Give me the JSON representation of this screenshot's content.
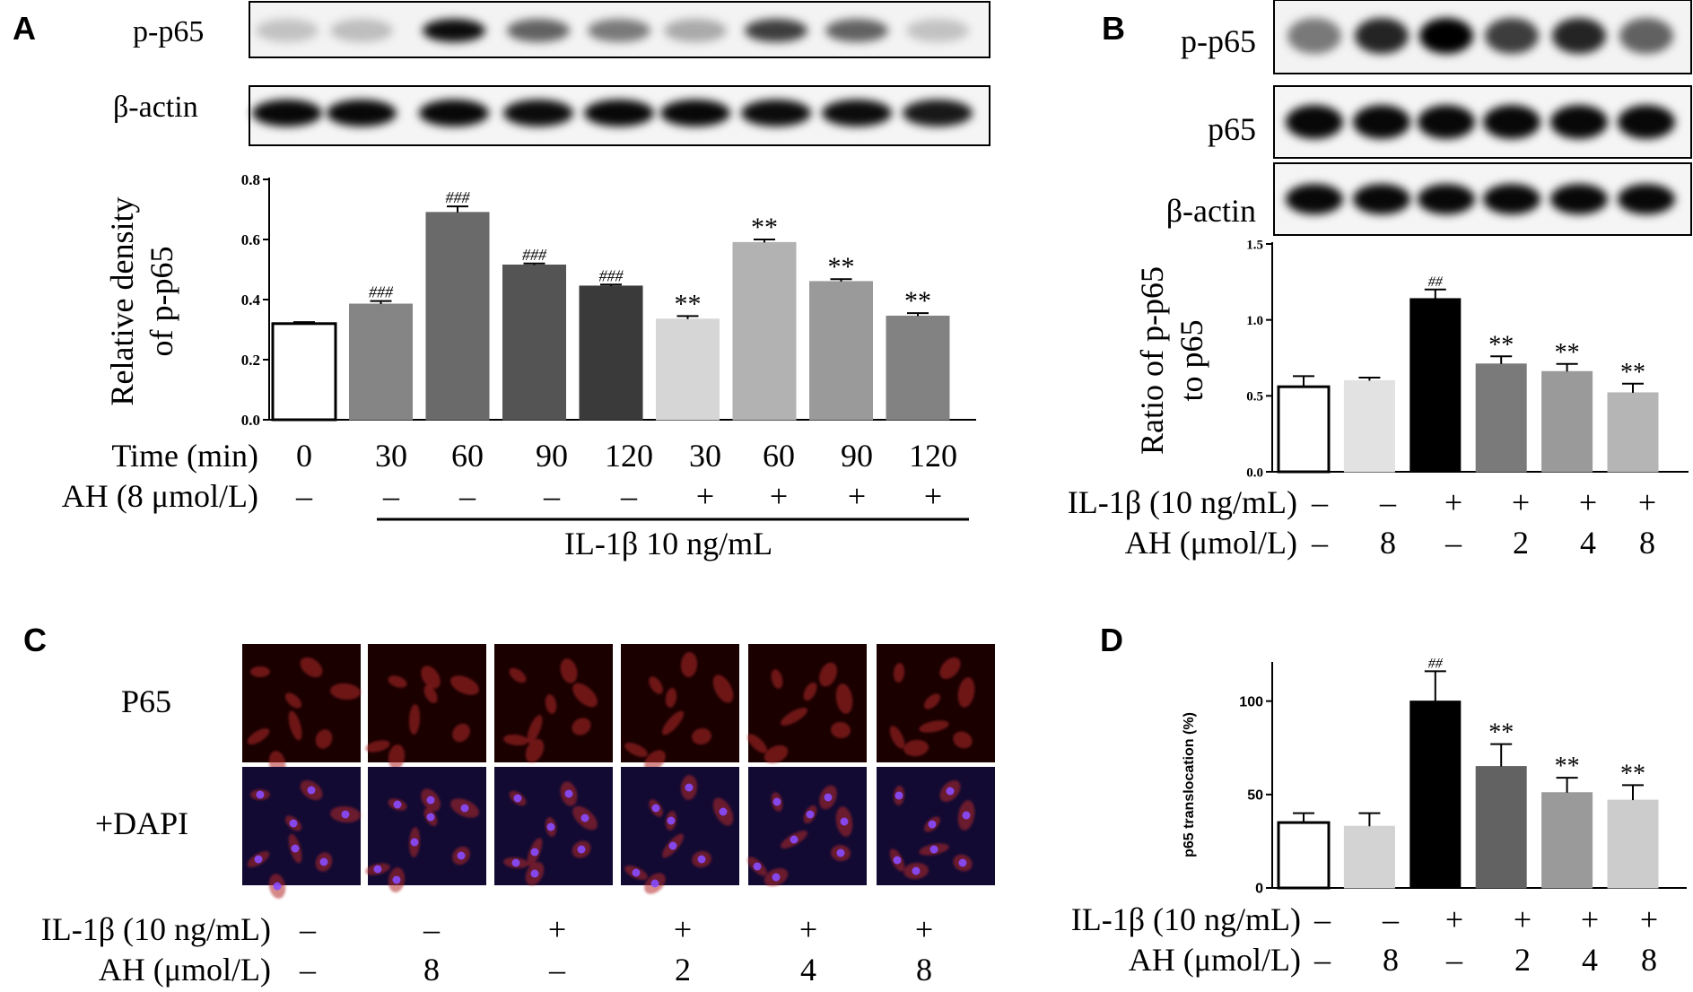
{
  "panels": {
    "a": {
      "letter": "A",
      "blot_labels": [
        "p-p65",
        "β-actin"
      ],
      "ylabel_lines": [
        "Relative density",
        "of p-p65"
      ],
      "row1_label": "Time (min)",
      "row2_label": "AH (8 μmol/L)",
      "times": [
        "0",
        "30",
        "60",
        "90",
        "120",
        "30",
        "60",
        "90",
        "120"
      ],
      "ah_signs": [
        "–",
        "–",
        "–",
        "–",
        "–",
        "+",
        "+",
        "+",
        "+"
      ],
      "bracket_label": "IL-1β 10 ng/mL"
    },
    "b": {
      "letter": "B",
      "blot_labels": [
        "p-p65",
        "p65",
        "β-actin"
      ],
      "ylabel_lines": [
        "Ratio of p-p65",
        "to p65"
      ],
      "row1_label": "IL-1β (10 ng/mL)",
      "row2_label": "AH (μmol/L)",
      "il_signs": [
        "–",
        "–",
        "+",
        "+",
        "+",
        "+"
      ],
      "ah_values": [
        "–",
        "8",
        "–",
        "2",
        "4",
        "8"
      ]
    },
    "c": {
      "letter": "C",
      "row_labels": [
        "P65",
        "+DAPI"
      ],
      "row1_label": "IL-1β (10 ng/mL)",
      "row2_label": "AH (μmol/L)",
      "il_signs": [
        "–",
        "–",
        "+",
        "+",
        "+",
        "+"
      ],
      "ah_values": [
        "–",
        "8",
        "–",
        "2",
        "4",
        "8"
      ]
    },
    "d": {
      "letter": "D",
      "ylabel": "p65 translocation (%)",
      "row1_label": "IL-1β (10 ng/mL)",
      "row2_label": "AH (μmol/L)",
      "il_signs": [
        "–",
        "–",
        "+",
        "+",
        "+",
        "+"
      ],
      "ah_values": [
        "–",
        "8",
        "–",
        "2",
        "4",
        "8"
      ]
    }
  },
  "chart_data": [
    {
      "panel": "A",
      "type": "bar",
      "categories": [
        "0",
        "30",
        "60",
        "90",
        "120",
        "30",
        "60",
        "90",
        "120"
      ],
      "values": [
        0.32,
        0.385,
        0.69,
        0.515,
        0.445,
        0.335,
        0.59,
        0.46,
        0.345
      ],
      "errors": [
        0.005,
        0.01,
        0.02,
        0.005,
        0.005,
        0.01,
        0.01,
        0.008,
        0.01
      ],
      "annotations": [
        "",
        "###",
        "###",
        "###",
        "###",
        "**",
        "**",
        "**",
        "**"
      ],
      "colors": [
        "#ffffff",
        "#858585",
        "#6a6a6a",
        "#545454",
        "#3a3a3a",
        "#d6d6d6",
        "#b2b2b2",
        "#9a9a9a",
        "#828282"
      ],
      "yticks": [
        "0.0",
        "0.2",
        "0.4",
        "0.6",
        "0.8"
      ],
      "ylim": [
        0,
        0.8
      ],
      "ylabel": "Relative density of p-p65"
    },
    {
      "panel": "B",
      "type": "bar",
      "values": [
        0.56,
        0.6,
        1.14,
        0.71,
        0.66,
        0.52
      ],
      "errors": [
        0.07,
        0.02,
        0.06,
        0.05,
        0.05,
        0.06
      ],
      "annotations": [
        "",
        "",
        "##",
        "**",
        "**",
        "**"
      ],
      "colors": [
        "#ffffff",
        "#e2e2e2",
        "#000000",
        "#7a7a7a",
        "#9a9a9a",
        "#b5b5b5"
      ],
      "yticks": [
        "0.0",
        "0.5",
        "1.0",
        "1.5"
      ],
      "ylim": [
        0,
        1.5
      ],
      "ylabel": "Ratio of p-p65 to p65"
    },
    {
      "panel": "D",
      "type": "bar",
      "values": [
        35,
        33,
        100,
        65,
        51,
        47
      ],
      "errors": [
        5,
        7,
        16,
        12,
        8,
        8
      ],
      "annotations": [
        "",
        "",
        "##",
        "**",
        "**",
        "**"
      ],
      "colors": [
        "#ffffff",
        "#d3d3d3",
        "#000000",
        "#626262",
        "#9a9a9a",
        "#cccccc"
      ],
      "yticks": [
        "0",
        "50",
        "100"
      ],
      "ylim": [
        0,
        120
      ],
      "ylabel": "p65 translocation (%)"
    }
  ]
}
